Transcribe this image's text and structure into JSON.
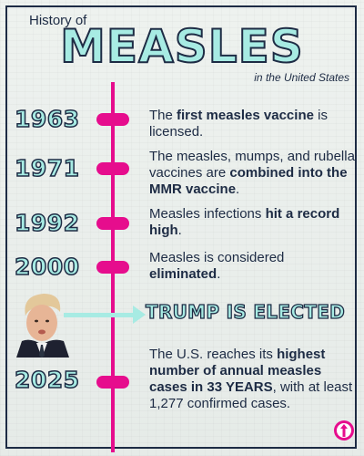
{
  "header": {
    "pre_title": "History of",
    "title": "MEASLES",
    "subtitle": "in the United States"
  },
  "events": [
    {
      "year": "1963",
      "text_before": "The ",
      "bold1": "first measles vaccine",
      "text_mid": " is licensed.",
      "bold2": "",
      "text_after": ""
    },
    {
      "year": "1971",
      "text_before": "The measles, mumps, and rubella vaccines are ",
      "bold1": "combined into the MMR vaccine",
      "text_mid": ".",
      "bold2": "",
      "text_after": ""
    },
    {
      "year": "1992",
      "text_before": "Measles infections ",
      "bold1": "hit a record high",
      "text_mid": ".",
      "bold2": "",
      "text_after": ""
    },
    {
      "year": "2000",
      "text_before": "Measles is considered ",
      "bold1": "eliminated",
      "text_mid": ".",
      "bold2": "",
      "text_after": ""
    },
    {
      "year": "2025",
      "text_before": "The U.S. reaches its ",
      "bold1": "highest number of annual measles cases in 33 YEARS",
      "text_mid": ", with at least 1,277 confirmed cases.",
      "bold2": "",
      "text_after": ""
    }
  ],
  "callout": {
    "label": "TRUMP IS ELECTED"
  },
  "colors": {
    "accent": "#e60d8d",
    "mint": "#a7ebe3",
    "navy": "#1d2b44"
  },
  "icons": {
    "portrait": "person-portrait-photo",
    "logo": "brand-logo-icon"
  }
}
